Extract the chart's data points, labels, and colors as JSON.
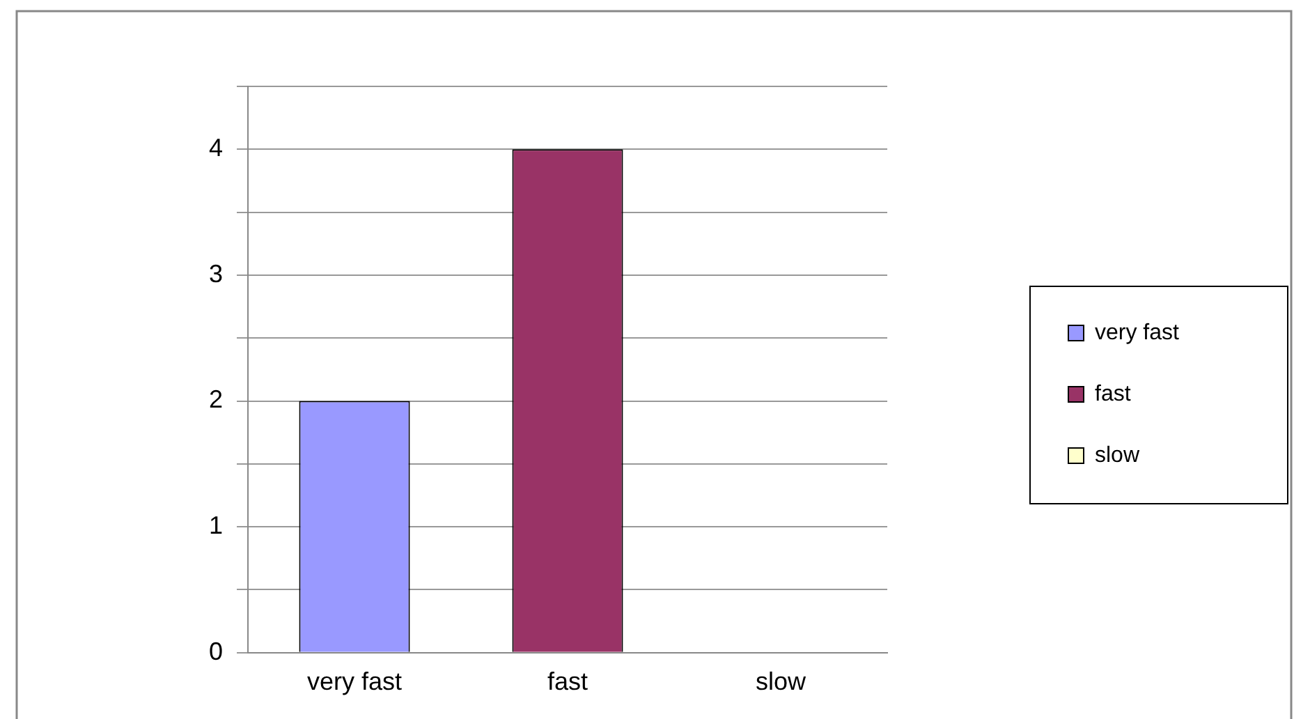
{
  "chart_data": {
    "type": "bar",
    "categories": [
      "very fast",
      "fast",
      "slow"
    ],
    "series": [
      {
        "name": "very fast",
        "color": "#9999ff",
        "values": [
          2,
          null,
          null
        ]
      },
      {
        "name": "fast",
        "color": "#993366",
        "values": [
          null,
          4,
          null
        ]
      },
      {
        "name": "slow",
        "color": "#ffffcc",
        "values": [
          null,
          null,
          0
        ]
      }
    ],
    "ylim": [
      0,
      4.5
    ],
    "yticks": [
      0,
      {
        "value": 0.5,
        "label": null
      },
      1,
      {
        "value": 1.5,
        "label": null
      },
      2,
      {
        "value": 2.5,
        "label": null
      },
      3,
      {
        "value": 3.5,
        "label": null
      },
      4,
      {
        "value": 4.5,
        "label": null
      }
    ],
    "grid": "y",
    "legend": "right"
  }
}
